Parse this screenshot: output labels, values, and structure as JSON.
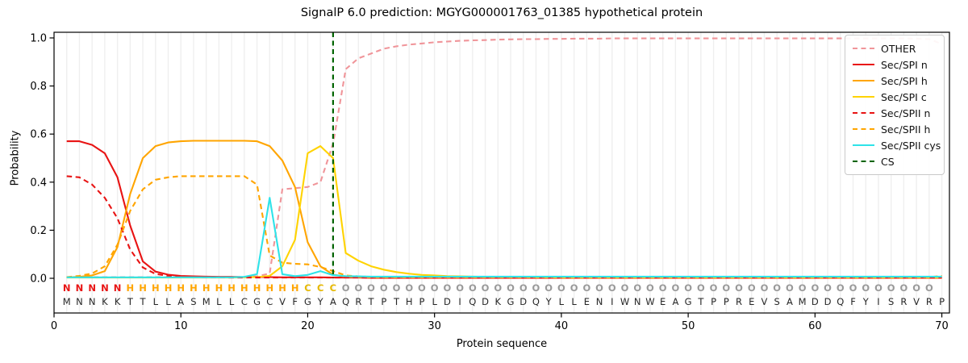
{
  "title": "SignalP 6.0 prediction: MGYG000001763_01385 hypothetical protein",
  "axes": {
    "x_label": "Protein sequence",
    "y_label": "Probability",
    "x_ticks": [
      0,
      10,
      20,
      30,
      40,
      50,
      60,
      70
    ],
    "y_ticks": [
      "0.0",
      "0.2",
      "0.4",
      "0.6",
      "0.8",
      "1.0"
    ],
    "x_min": 0,
    "x_max": 70.6,
    "y_min": -0.144,
    "y_max": 1.024,
    "grid": "vertical-per-residue"
  },
  "legend": {
    "position": "upper right",
    "items": [
      {
        "label": "OTHER",
        "color": "#f0959a",
        "dash": true
      },
      {
        "label": "Sec/SPI n",
        "color": "#e81313",
        "dash": false
      },
      {
        "label": "Sec/SPI h",
        "color": "#ffa500",
        "dash": false
      },
      {
        "label": "Sec/SPI c",
        "color": "#ffd300",
        "dash": false
      },
      {
        "label": "Sec/SPII n",
        "color": "#e81313",
        "dash": true
      },
      {
        "label": "Sec/SPII h",
        "color": "#ffa500",
        "dash": true
      },
      {
        "label": "Sec/SPII cys",
        "color": "#2ee3e9",
        "dash": false
      },
      {
        "label": "CS",
        "color": "#006400",
        "dash": true
      }
    ]
  },
  "chart_data": {
    "type": "line",
    "title": "SignalP 6.0 prediction: MGYG000001763_01385 hypothetical protein",
    "xlabel": "Protein sequence",
    "ylabel": "Probability",
    "xlim": [
      0,
      70.6
    ],
    "ylim": [
      -0.144,
      1.024
    ],
    "x_start": 1,
    "sequence": "MNNKKTTLLASMLLCGCVFGYAQRTPTHPLDIQDKGDQYLLENIWNWEAGTPPREVSAMDDQFYISRVRP",
    "regions": "NNNNNHHHHHHHHHHHHHHCCCOOOOOOOOOOOOOOOOOOOOOOOOOOOOOOOOOOOOOOOOOOOOOOO",
    "region_colors": {
      "N": "#e81313",
      "H": "#ffa500",
      "C": "#e6b800",
      "O": "#999999"
    },
    "sequence_color": "#262626",
    "cs_marker": {
      "label": "CS",
      "position": 22,
      "color": "#006400",
      "dash": true
    },
    "series": [
      {
        "name": "OTHER",
        "color": "#f0959a",
        "dash": true,
        "values": [
          0.005,
          0.005,
          0.005,
          0.005,
          0.005,
          0.005,
          0.005,
          0.005,
          0.005,
          0.005,
          0.005,
          0.005,
          0.005,
          0.005,
          0.006,
          0.008,
          0.02,
          0.37,
          0.375,
          0.38,
          0.4,
          0.56,
          0.87,
          0.915,
          0.935,
          0.955,
          0.965,
          0.972,
          0.977,
          0.982,
          0.985,
          0.988,
          0.99,
          0.991,
          0.993,
          0.994,
          0.995,
          0.995,
          0.996,
          0.996,
          0.997,
          0.997,
          0.997,
          0.998,
          0.998,
          0.998,
          0.998,
          0.998,
          0.998,
          0.998,
          0.998,
          0.998,
          0.998,
          0.998,
          0.998,
          0.998,
          0.998,
          0.998,
          0.998,
          0.998,
          0.998,
          0.998,
          0.998,
          0.998,
          0.998,
          0.998,
          0.998,
          0.997,
          0.995,
          0.975
        ]
      },
      {
        "name": "Sec/SPI n",
        "color": "#e81313",
        "dash": false,
        "values": [
          0.57,
          0.57,
          0.555,
          0.52,
          0.42,
          0.22,
          0.07,
          0.028,
          0.015,
          0.01,
          0.008,
          0.007,
          0.006,
          0.006,
          0.005,
          0.005,
          0.005,
          0.004,
          0.004,
          0.004,
          0.004,
          0.003,
          0.003,
          0.003,
          0.002,
          0.002,
          0.002,
          0.002,
          0.002,
          0.002,
          0.002,
          0.002,
          0.002,
          0.002,
          0.002,
          0.002,
          0.002,
          0.002,
          0.002,
          0.002,
          0.002,
          0.002,
          0.002,
          0.002,
          0.002,
          0.002,
          0.002,
          0.002,
          0.002,
          0.002,
          0.002,
          0.002,
          0.002,
          0.002,
          0.002,
          0.002,
          0.002,
          0.002,
          0.002,
          0.002,
          0.002,
          0.002,
          0.002,
          0.002,
          0.002,
          0.002,
          0.002,
          0.002,
          0.002,
          0.002
        ]
      },
      {
        "name": "Sec/SPI h",
        "color": "#ffa500",
        "dash": false,
        "values": [
          0.004,
          0.006,
          0.012,
          0.03,
          0.13,
          0.35,
          0.5,
          0.55,
          0.565,
          0.57,
          0.572,
          0.572,
          0.572,
          0.572,
          0.572,
          0.57,
          0.55,
          0.49,
          0.38,
          0.15,
          0.05,
          0.015,
          0.007,
          0.005,
          0.004,
          0.004,
          0.004,
          0.004,
          0.004,
          0.004,
          0.004,
          0.004,
          0.004,
          0.004,
          0.004,
          0.004,
          0.004,
          0.004,
          0.004,
          0.004,
          0.004,
          0.004,
          0.004,
          0.004,
          0.004,
          0.004,
          0.004,
          0.004,
          0.004,
          0.004,
          0.004,
          0.004,
          0.004,
          0.004,
          0.004,
          0.004,
          0.004,
          0.004,
          0.004,
          0.004,
          0.004,
          0.004,
          0.004,
          0.004,
          0.004,
          0.004,
          0.004,
          0.004,
          0.004,
          0.004
        ]
      },
      {
        "name": "Sec/SPI c",
        "color": "#ffd300",
        "dash": false,
        "values": [
          0.003,
          0.003,
          0.003,
          0.003,
          0.003,
          0.003,
          0.003,
          0.003,
          0.003,
          0.003,
          0.003,
          0.003,
          0.003,
          0.003,
          0.004,
          0.005,
          0.01,
          0.05,
          0.16,
          0.52,
          0.55,
          0.5,
          0.105,
          0.073,
          0.05,
          0.036,
          0.026,
          0.019,
          0.014,
          0.012,
          0.009,
          0.008,
          0.007,
          0.006,
          0.006,
          0.005,
          0.005,
          0.004,
          0.004,
          0.003,
          0.003,
          0.003,
          0.003,
          0.003,
          0.003,
          0.003,
          0.003,
          0.003,
          0.003,
          0.003,
          0.003,
          0.003,
          0.003,
          0.003,
          0.003,
          0.003,
          0.003,
          0.003,
          0.003,
          0.003,
          0.003,
          0.003,
          0.003,
          0.003,
          0.003,
          0.003,
          0.003,
          0.003,
          0.003,
          0.003
        ]
      },
      {
        "name": "Sec/SPII n",
        "color": "#e81313",
        "dash": true,
        "values": [
          0.425,
          0.42,
          0.39,
          0.335,
          0.25,
          0.12,
          0.045,
          0.018,
          0.01,
          0.007,
          0.005,
          0.004,
          0.004,
          0.003,
          0.003,
          0.003,
          0.003,
          0.003,
          0.003,
          0.003,
          0.003,
          0.003,
          0.003,
          0.003,
          0.003,
          0.003,
          0.003,
          0.003,
          0.003,
          0.003,
          0.003,
          0.003,
          0.003,
          0.003,
          0.003,
          0.003,
          0.003,
          0.003,
          0.003,
          0.003,
          0.003,
          0.003,
          0.003,
          0.003,
          0.003,
          0.003,
          0.003,
          0.003,
          0.003,
          0.003,
          0.003,
          0.003,
          0.003,
          0.003,
          0.003,
          0.003,
          0.003,
          0.003,
          0.003,
          0.003,
          0.003,
          0.003,
          0.003,
          0.003,
          0.003,
          0.003,
          0.003,
          0.003,
          0.003,
          0.003
        ]
      },
      {
        "name": "Sec/SPII h",
        "color": "#ffa500",
        "dash": true,
        "values": [
          0.005,
          0.01,
          0.02,
          0.05,
          0.14,
          0.28,
          0.37,
          0.41,
          0.42,
          0.425,
          0.425,
          0.425,
          0.425,
          0.425,
          0.425,
          0.39,
          0.095,
          0.065,
          0.06,
          0.058,
          0.047,
          0.03,
          0.012,
          0.008,
          0.006,
          0.005,
          0.005,
          0.005,
          0.005,
          0.005,
          0.005,
          0.005,
          0.005,
          0.005,
          0.005,
          0.005,
          0.005,
          0.005,
          0.005,
          0.005,
          0.005,
          0.005,
          0.005,
          0.005,
          0.005,
          0.005,
          0.005,
          0.005,
          0.005,
          0.005,
          0.005,
          0.005,
          0.005,
          0.005,
          0.005,
          0.005,
          0.005,
          0.005,
          0.005,
          0.005,
          0.005,
          0.005,
          0.005,
          0.005,
          0.005,
          0.005,
          0.005,
          0.005,
          0.005,
          0.01
        ]
      },
      {
        "name": "Sec/SPII cys",
        "color": "#2ee3e9",
        "dash": false,
        "values": [
          0.004,
          0.004,
          0.004,
          0.004,
          0.004,
          0.004,
          0.004,
          0.004,
          0.004,
          0.004,
          0.004,
          0.004,
          0.004,
          0.004,
          0.006,
          0.017,
          0.335,
          0.017,
          0.009,
          0.014,
          0.03,
          0.013,
          0.009,
          0.008,
          0.007,
          0.007,
          0.007,
          0.007,
          0.007,
          0.007,
          0.007,
          0.007,
          0.007,
          0.007,
          0.007,
          0.007,
          0.007,
          0.007,
          0.007,
          0.007,
          0.007,
          0.007,
          0.007,
          0.007,
          0.007,
          0.007,
          0.007,
          0.007,
          0.007,
          0.007,
          0.007,
          0.007,
          0.007,
          0.007,
          0.007,
          0.007,
          0.007,
          0.007,
          0.007,
          0.007,
          0.007,
          0.007,
          0.007,
          0.007,
          0.007,
          0.007,
          0.007,
          0.007,
          0.007,
          0.007
        ]
      }
    ]
  }
}
